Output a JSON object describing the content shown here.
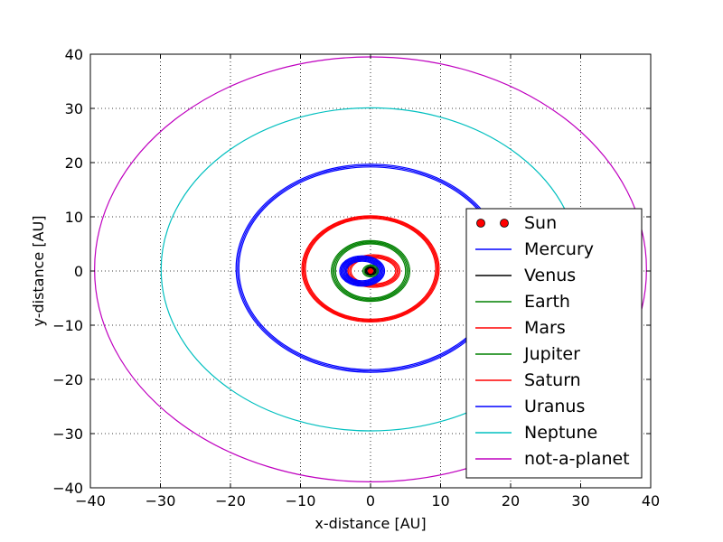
{
  "chart_data": {
    "type": "line",
    "title": "",
    "xlabel": "x-distance [AU]",
    "ylabel": "y-distance [AU]",
    "xlim": [
      -40,
      40
    ],
    "ylim": [
      -40,
      40
    ],
    "xticks": [
      -40,
      -30,
      -20,
      -10,
      0,
      10,
      20,
      30,
      40
    ],
    "yticks": [
      -40,
      -30,
      -20,
      -10,
      0,
      10,
      20,
      30,
      40
    ],
    "xtick_labels": [
      "−40",
      "−30",
      "−20",
      "−10",
      "0",
      "10",
      "20",
      "30",
      "40"
    ],
    "ytick_labels": [
      "−40",
      "−30",
      "−20",
      "−10",
      "0",
      "10",
      "20",
      "30",
      "40"
    ],
    "grid": true,
    "grid_style": "dotted",
    "legend_position": "lower-right",
    "series": [
      {
        "name": "Sun",
        "color": "#ff0000",
        "marker": "circle",
        "points": [
          [
            0,
            0
          ]
        ]
      },
      {
        "name": "Mercury",
        "color": "#0000ff",
        "orbit": {
          "cx": -1.2,
          "cy": 0,
          "rx_min": 2.2,
          "rx_max": 3.2,
          "ry_min": 1.8,
          "ry_max": 2.8
        }
      },
      {
        "name": "Venus",
        "color": "#000000",
        "orbit": {
          "cx": 0,
          "cy": 0,
          "rx_min": 0.6,
          "rx_max": 0.75,
          "ry_min": 0.6,
          "ry_max": 0.75
        }
      },
      {
        "name": "Earth",
        "color": "#008000",
        "orbit": {
          "cx": 0,
          "cy": 0,
          "rx_min": 0.9,
          "rx_max": 1.1,
          "ry_min": 0.9,
          "ry_max": 1.1
        }
      },
      {
        "name": "Mars",
        "color": "#ff0000",
        "orbit": {
          "cx": 0.4,
          "cy": 0,
          "rx_min": 3.2,
          "rx_max": 3.8,
          "ry_min": 2.4,
          "ry_max": 3.0
        }
      },
      {
        "name": "Jupiter",
        "color": "#008000",
        "orbit": {
          "cx": 0,
          "cy": 0,
          "rx_min": 5.0,
          "rx_max": 5.6,
          "ry_min": 5.0,
          "ry_max": 5.6
        }
      },
      {
        "name": "Saturn",
        "color": "#ff0000",
        "orbit": {
          "cx": 0,
          "cy": 0.4,
          "rx_min": 9.3,
          "rx_max": 9.8,
          "ry_min": 9.3,
          "ry_max": 9.8
        }
      },
      {
        "name": "Uranus",
        "color": "#0000ff",
        "orbit": {
          "cx": 0,
          "cy": 0.5,
          "rx_min": 18.8,
          "rx_max": 19.2,
          "ry_min": 18.7,
          "ry_max": 19.2
        }
      },
      {
        "name": "Neptune",
        "color": "#00bfbf",
        "orbit": {
          "cx": 0,
          "cy": 0.3,
          "rx_min": 29.9,
          "rx_max": 29.9,
          "ry_min": 29.8,
          "ry_max": 29.8
        }
      },
      {
        "name": "not-a-planet",
        "color": "#bf00bf",
        "orbit": {
          "cx": 0,
          "cy": 0.3,
          "rx_min": 39.4,
          "rx_max": 39.4,
          "ry_min": 39.2,
          "ry_max": 39.2
        }
      }
    ]
  }
}
